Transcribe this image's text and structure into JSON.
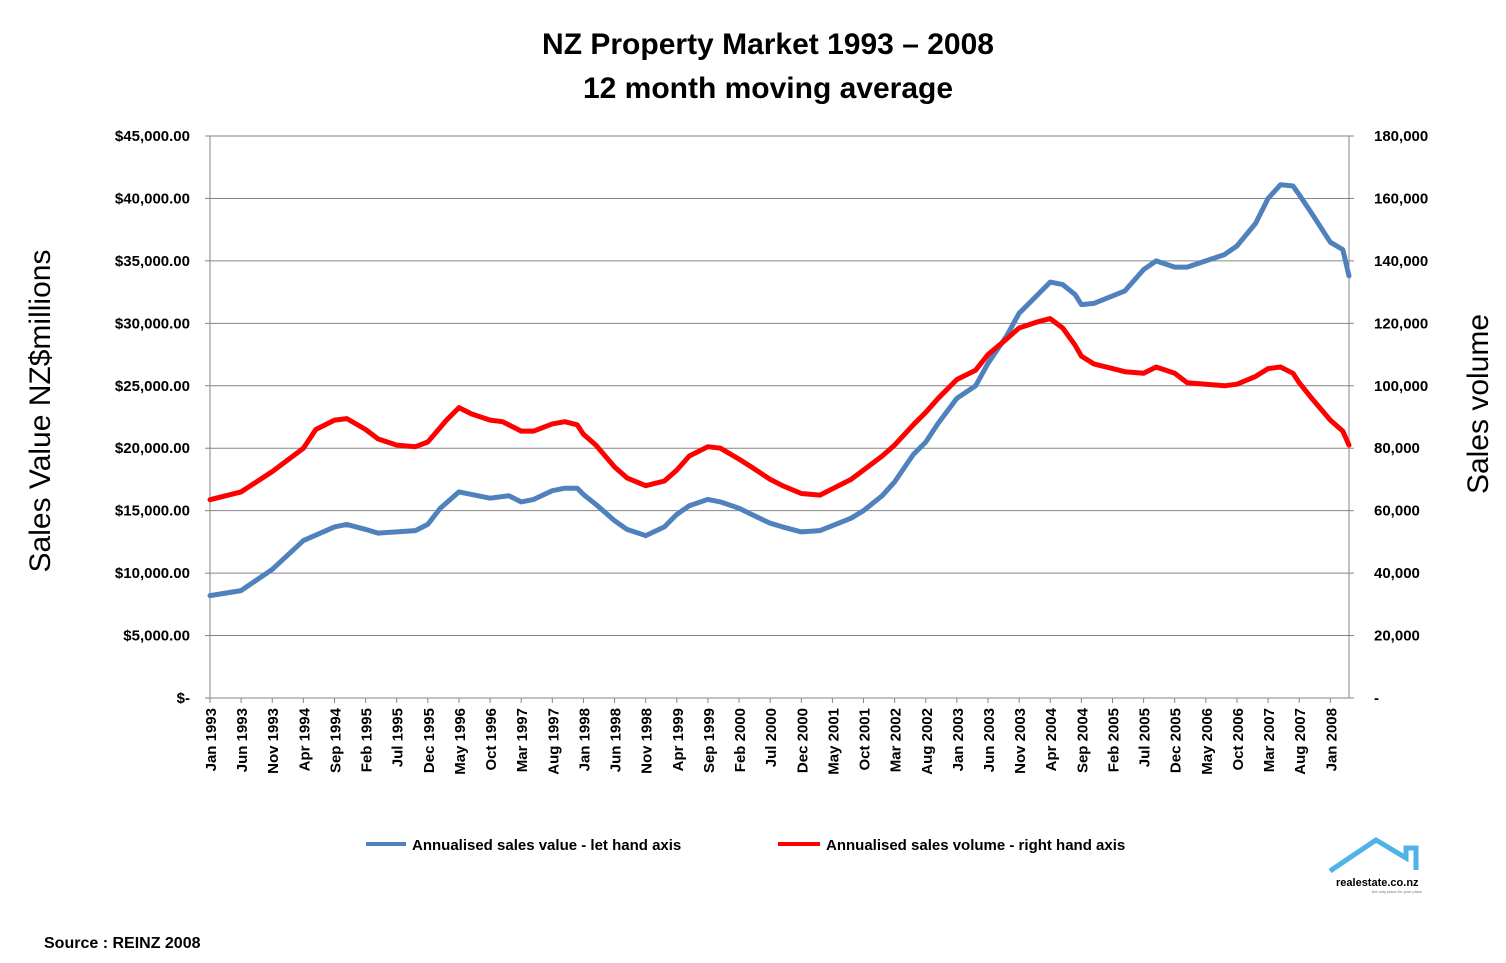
{
  "chart_data": {
    "type": "line",
    "title": "NZ Property Market 1993 – 2008",
    "subtitle": "12 month moving average",
    "ylabel": "Sales Value NZ$millions",
    "y2label": "Sales volume",
    "ylim": [
      0,
      45000
    ],
    "y2lim": [
      0,
      180000
    ],
    "yticks": [
      "$-",
      "$5,000.00",
      "$10,000.00",
      "$15,000.00",
      "$20,000.00",
      "$25,000.00",
      "$30,000.00",
      "$35,000.00",
      "$40,000.00",
      "$45,000.00"
    ],
    "y2ticks": [
      "-",
      "20,000",
      "40,000",
      "60,000",
      "80,000",
      "100,000",
      "120,000",
      "140,000",
      "160,000",
      "180,000"
    ],
    "xticks": [
      "Jan 1993",
      "Jun 1993",
      "Nov 1993",
      "Apr 1994",
      "Sep 1994",
      "Feb 1995",
      "Jul 1995",
      "Dec 1995",
      "May 1996",
      "Oct 1996",
      "Mar 1997",
      "Aug 1997",
      "Jan 1998",
      "Jun 1998",
      "Nov 1998",
      "Apr 1999",
      "Sep 1999",
      "Feb 2000",
      "Jul 2000",
      "Dec 2000",
      "May 2001",
      "Oct 2001",
      "Mar 2002",
      "Aug 2002",
      "Jan 2003",
      "Jun 2003",
      "Nov 2003",
      "Apr 2004",
      "Sep 2004",
      "Feb 2005",
      "Jul 2005",
      "Dec 2005",
      "May 2006",
      "Oct 2006",
      "Mar 2007",
      "Aug 2007",
      "Jan 2008"
    ],
    "x_range": [
      "Jan 1993",
      "Apr 2008"
    ],
    "grid": true,
    "legend_position": "bottom",
    "series": [
      {
        "name": "Annualised sales value - let hand axis",
        "axis": "left",
        "color": "#4F81BD",
        "points": [
          [
            "Jan 1993",
            8200
          ],
          [
            "Jun 1993",
            8600
          ],
          [
            "Nov 1993",
            10300
          ],
          [
            "Apr 1994",
            12600
          ],
          [
            "Sep 1994",
            13700
          ],
          [
            "Nov 1994",
            13900
          ],
          [
            "Feb 1995",
            13500
          ],
          [
            "Apr 1995",
            13200
          ],
          [
            "Jul 1995",
            13300
          ],
          [
            "Oct 1995",
            13400
          ],
          [
            "Dec 1995",
            13900
          ],
          [
            "Feb 1996",
            15200
          ],
          [
            "May 1996",
            16500
          ],
          [
            "Jul 1996",
            16300
          ],
          [
            "Oct 1996",
            16000
          ],
          [
            "Jan 1997",
            16200
          ],
          [
            "Mar 1997",
            15700
          ],
          [
            "May 1997",
            15900
          ],
          [
            "Aug 1997",
            16600
          ],
          [
            "Oct 1997",
            16800
          ],
          [
            "Dec 1997",
            16800
          ],
          [
            "Jan 1998",
            16300
          ],
          [
            "Mar 1998",
            15500
          ],
          [
            "Jun 1998",
            14200
          ],
          [
            "Aug 1998",
            13500
          ],
          [
            "Nov 1998",
            13000
          ],
          [
            "Feb 1999",
            13700
          ],
          [
            "Apr 1999",
            14700
          ],
          [
            "Jun 1999",
            15400
          ],
          [
            "Sep 1999",
            15900
          ],
          [
            "Nov 1999",
            15700
          ],
          [
            "Feb 2000",
            15200
          ],
          [
            "Apr 2000",
            14700
          ],
          [
            "Jul 2000",
            14000
          ],
          [
            "Sep 2000",
            13700
          ],
          [
            "Dec 2000",
            13300
          ],
          [
            "Mar 2001",
            13400
          ],
          [
            "May 2001",
            13800
          ],
          [
            "Aug 2001",
            14400
          ],
          [
            "Oct 2001",
            15000
          ],
          [
            "Jan 2002",
            16200
          ],
          [
            "Mar 2002",
            17300
          ],
          [
            "Jun 2002",
            19500
          ],
          [
            "Aug 2002",
            20500
          ],
          [
            "Oct 2002",
            22000
          ],
          [
            "Jan 2003",
            24000
          ],
          [
            "Apr 2003",
            25000
          ],
          [
            "Jun 2003",
            26800
          ],
          [
            "Sep 2003",
            29000
          ],
          [
            "Nov 2003",
            30800
          ],
          [
            "Feb 2004",
            32300
          ],
          [
            "Apr 2004",
            33300
          ],
          [
            "Jun 2004",
            33100
          ],
          [
            "Aug 2004",
            32300
          ],
          [
            "Sep 2004",
            31500
          ],
          [
            "Nov 2004",
            31600
          ],
          [
            "Feb 2005",
            32200
          ],
          [
            "Apr 2005",
            32600
          ],
          [
            "Jul 2005",
            34300
          ],
          [
            "Sep 2005",
            35000
          ],
          [
            "Dec 2005",
            34500
          ],
          [
            "Feb 2006",
            34500
          ],
          [
            "May 2006",
            35000
          ],
          [
            "Aug 2006",
            35500
          ],
          [
            "Oct 2006",
            36200
          ],
          [
            "Jan 2007",
            38000
          ],
          [
            "Mar 2007",
            40000
          ],
          [
            "May 2007",
            41100
          ],
          [
            "Jul 2007",
            41000
          ],
          [
            "Aug 2007",
            40300
          ],
          [
            "Oct 2007",
            38800
          ],
          [
            "Jan 2008",
            36500
          ],
          [
            "Mar 2008",
            35900
          ],
          [
            "Apr 2008",
            33800
          ]
        ]
      },
      {
        "name": "Annualised sales volume - right hand axis",
        "axis": "right",
        "color": "#FF0000",
        "points": [
          [
            "Jan 1993",
            63500
          ],
          [
            "Jun 1993",
            66000
          ],
          [
            "Nov 1993",
            72500
          ],
          [
            "Apr 1994",
            80000
          ],
          [
            "Jun 1994",
            86000
          ],
          [
            "Sep 1994",
            89000
          ],
          [
            "Nov 1994",
            89500
          ],
          [
            "Feb 1995",
            86000
          ],
          [
            "Apr 1995",
            83000
          ],
          [
            "Jul 1995",
            81000
          ],
          [
            "Oct 1995",
            80500
          ],
          [
            "Dec 1995",
            82000
          ],
          [
            "Mar 1996",
            89000
          ],
          [
            "May 1996",
            93000
          ],
          [
            "Jul 1996",
            91000
          ],
          [
            "Oct 1996",
            89000
          ],
          [
            "Dec 1996",
            88500
          ],
          [
            "Mar 1997",
            85500
          ],
          [
            "May 1997",
            85500
          ],
          [
            "Aug 1997",
            87800
          ],
          [
            "Oct 1997",
            88500
          ],
          [
            "Dec 1997",
            87500
          ],
          [
            "Jan 1998",
            84500
          ],
          [
            "Mar 1998",
            81000
          ],
          [
            "Jun 1998",
            74000
          ],
          [
            "Aug 1998",
            70500
          ],
          [
            "Nov 1998",
            68000
          ],
          [
            "Feb 1999",
            69500
          ],
          [
            "Apr 1999",
            73000
          ],
          [
            "Jun 1999",
            77500
          ],
          [
            "Sep 1999",
            80500
          ],
          [
            "Nov 1999",
            80000
          ],
          [
            "Feb 2000",
            76500
          ],
          [
            "Apr 2000",
            74000
          ],
          [
            "Jul 2000",
            70000
          ],
          [
            "Sep 2000",
            68000
          ],
          [
            "Dec 2000",
            65500
          ],
          [
            "Mar 2001",
            65000
          ],
          [
            "May 2001",
            67000
          ],
          [
            "Aug 2001",
            70000
          ],
          [
            "Oct 2001",
            73000
          ],
          [
            "Jan 2002",
            77500
          ],
          [
            "Mar 2002",
            81000
          ],
          [
            "Jun 2002",
            87500
          ],
          [
            "Aug 2002",
            91500
          ],
          [
            "Oct 2002",
            96000
          ],
          [
            "Jan 2003",
            102000
          ],
          [
            "Apr 2003",
            105000
          ],
          [
            "Jun 2003",
            110000
          ],
          [
            "Sep 2003",
            115000
          ],
          [
            "Nov 2003",
            118500
          ],
          [
            "Feb 2004",
            120500
          ],
          [
            "Apr 2004",
            121500
          ],
          [
            "Jun 2004",
            118500
          ],
          [
            "Aug 2004",
            113000
          ],
          [
            "Sep 2004",
            109500
          ],
          [
            "Nov 2004",
            107000
          ],
          [
            "Feb 2005",
            105500
          ],
          [
            "Apr 2005",
            104500
          ],
          [
            "Jul 2005",
            104000
          ],
          [
            "Sep 2005",
            106000
          ],
          [
            "Dec 2005",
            104000
          ],
          [
            "Feb 2006",
            101000
          ],
          [
            "May 2006",
            100500
          ],
          [
            "Aug 2006",
            100000
          ],
          [
            "Oct 2006",
            100500
          ],
          [
            "Jan 2007",
            103000
          ],
          [
            "Mar 2007",
            105500
          ],
          [
            "May 2007",
            106000
          ],
          [
            "Jul 2007",
            104000
          ],
          [
            "Aug 2007",
            101000
          ],
          [
            "Oct 2007",
            96000
          ],
          [
            "Jan 2008",
            89000
          ],
          [
            "Mar 2008",
            85500
          ],
          [
            "Apr 2008",
            81000
          ]
        ]
      }
    ]
  },
  "source": "Source : REINZ 2008",
  "logo": {
    "text": "realestate.co.nz",
    "tagline": "the only place for your place",
    "icon": "house-roof-icon",
    "color": "#4FB3E8"
  }
}
